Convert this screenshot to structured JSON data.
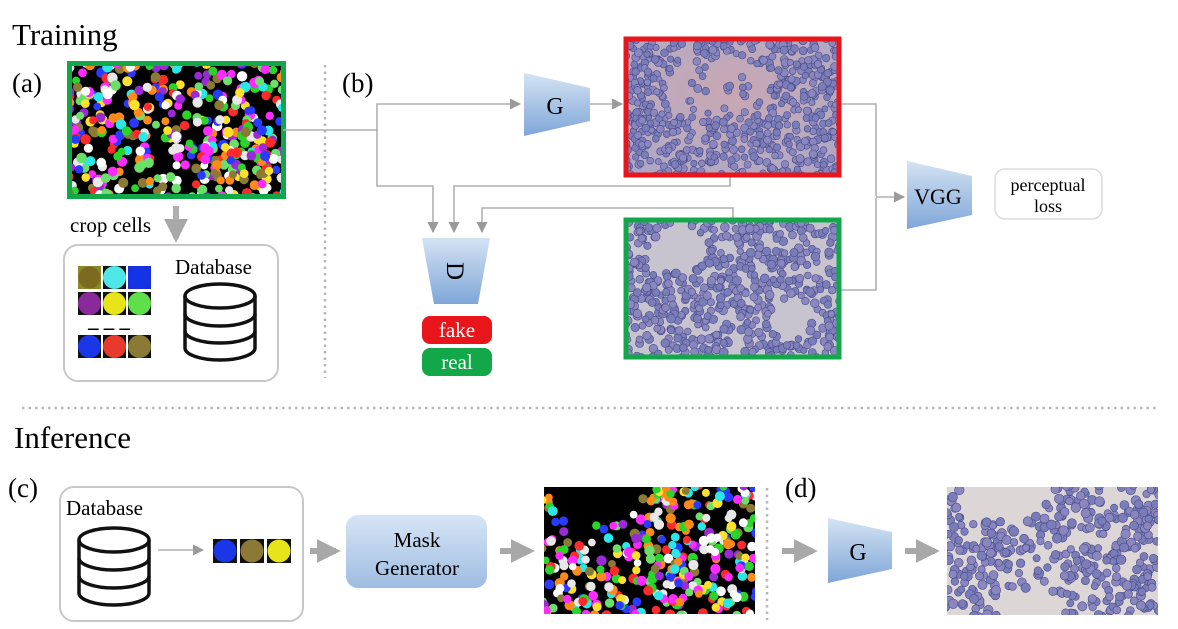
{
  "sections": {
    "training": "Training",
    "inference": "Inference"
  },
  "panels": {
    "a": "(a)",
    "b": "(b)",
    "c": "(c)",
    "d": "(d)"
  },
  "training": {
    "crop_label": "crop cells",
    "database_label": "Database",
    "generator_label": "G",
    "discriminator_label": "D",
    "fake_label": "fake",
    "real_label": "real",
    "vgg_label": "VGG",
    "loss_line1": "perceptual",
    "loss_line2": "loss",
    "ellipsis": "– – –"
  },
  "inference": {
    "database_label": "Database",
    "mask_generator_line1": "Mask",
    "mask_generator_line2": "Generator",
    "generator_label": "G"
  },
  "colors": {
    "real_green": "#12a84a",
    "fake_red": "#e8151b",
    "block_blue_light": "#c9dcf0",
    "block_blue_dark": "#7ba3d6",
    "arrow_gray": "#b0b0b0",
    "cell_purple": "#7f7fb8"
  },
  "icons": {
    "database": "database-icon",
    "cell_tiles": "cell-crop-tiles"
  }
}
